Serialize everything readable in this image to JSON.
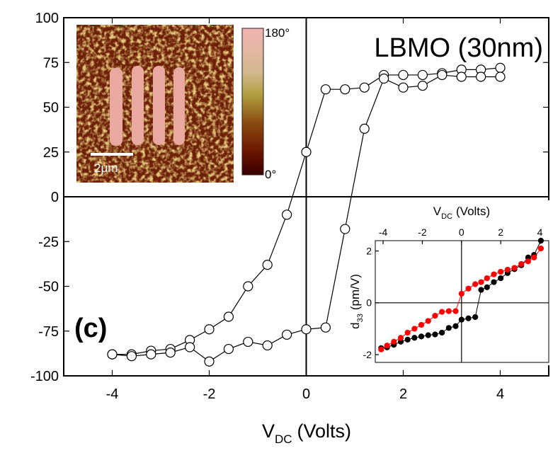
{
  "chart_data": [
    {
      "type": "line",
      "xlabel": "V",
      "xlabel_subscript": "DC",
      "xlabel_unit": "(Volts)",
      "annotations": [
        "LBMO (30nm)",
        "(c)"
      ],
      "x": [
        -4,
        -3.6,
        -3.2,
        -2.8,
        -2.4,
        -2,
        -1.6,
        -1.2,
        -0.8,
        -0.4,
        0,
        0.4,
        0.8,
        1.2,
        1.6,
        2,
        2.4,
        2.8,
        3.2,
        3.6,
        4,
        4,
        3.6,
        3.2,
        2.8,
        2.4,
        2,
        1.6,
        1.2,
        0.8,
        0.4,
        0,
        -0.4,
        -0.8,
        -1.2,
        -1.6,
        -2,
        -2.4,
        -2.8,
        -3.2,
        -3.6,
        -4
      ],
      "series": [
        {
          "color": "#000000",
          "marker_fill": "#ffffff",
          "values": [
            -88,
            -88,
            -86,
            -85,
            -80,
            -74,
            -67,
            -50,
            -38,
            -10,
            25,
            60,
            60,
            61,
            68,
            68,
            68,
            69,
            71,
            71,
            72,
            67,
            67,
            67,
            68,
            62,
            61,
            66,
            38,
            -18,
            -73,
            -74,
            -77,
            -83,
            -81,
            -85,
            -92,
            -84,
            -87,
            -88,
            -89,
            -88
          ]
        }
      ],
      "xlim": [
        -5,
        5
      ],
      "xticks": [
        -4,
        -2,
        0,
        2,
        4
      ],
      "ylim": [
        -100,
        100
      ],
      "yticks": [
        -100,
        -75,
        -50,
        -25,
        0,
        25,
        50,
        75,
        100
      ],
      "zero_lines": true
    },
    {
      "type": "line",
      "xlabel": "V",
      "xlabel_subscript": "DC",
      "xlabel_unit": "(Volts)",
      "ylabel": "d",
      "ylabel_subscript": "33",
      "ylabel_unit": "(pm/V)",
      "x": [
        -4.1,
        -3.8,
        -3.45,
        -3.1,
        -2.75,
        -2.4,
        -2.05,
        -1.7,
        -1.35,
        -1.0,
        -0.65,
        -0.3,
        0.0,
        0.35,
        0.7,
        1.0,
        1.3,
        1.65,
        2.0,
        2.35,
        2.7,
        3.05,
        3.4,
        3.7,
        4.05
      ],
      "series": [
        {
          "color": "#000000",
          "values": [
            -1.75,
            -1.72,
            -1.62,
            -1.5,
            -1.42,
            -1.35,
            -1.3,
            -1.25,
            -1.22,
            -1.15,
            -0.97,
            -0.9,
            -0.65,
            -0.6,
            -0.55,
            0.5,
            0.6,
            0.8,
            0.95,
            1.15,
            1.3,
            1.45,
            1.75,
            1.85,
            2.4
          ]
        },
        {
          "color": "#ff0000",
          "values": [
            -1.8,
            -1.65,
            -1.5,
            -1.35,
            -1.15,
            -1.0,
            -0.85,
            -0.7,
            -0.5,
            -0.35,
            -0.32,
            -0.32,
            0.35,
            0.55,
            0.72,
            0.8,
            0.95,
            1.1,
            1.2,
            1.28,
            1.35,
            1.5,
            1.6,
            1.75,
            2.1
          ]
        }
      ],
      "xlim": [
        -4.4,
        4.45
      ],
      "xticks": [
        -4,
        -2,
        0,
        2,
        4
      ],
      "ylim": [
        -2.3,
        2.4
      ],
      "yticks": [
        -2,
        0,
        2
      ],
      "zero_lines": true
    }
  ],
  "image_inset": {
    "scale_bar": "2μm",
    "colorbar_max": "180°",
    "colorbar_min": "0°"
  }
}
